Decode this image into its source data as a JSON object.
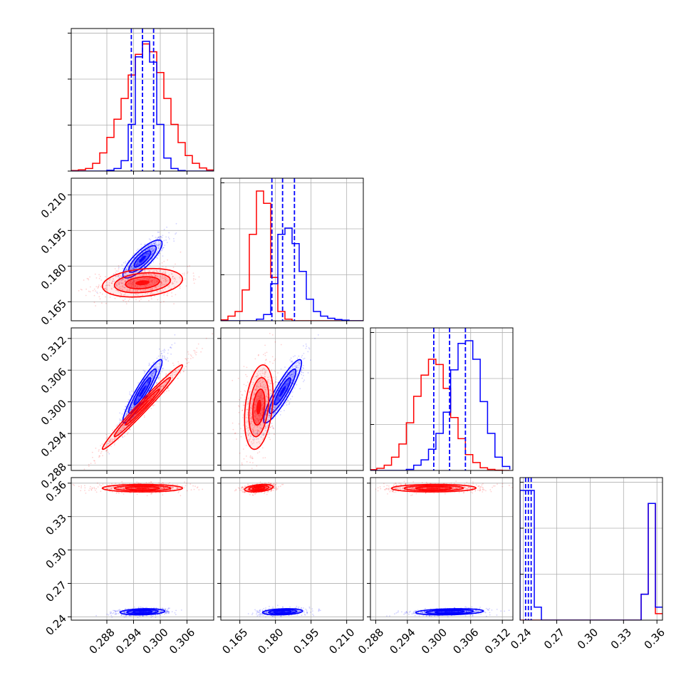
{
  "chart_data": {
    "type": "corner",
    "colors": {
      "series_a": "#0000ff",
      "series_b": "#ff0000",
      "grid": "#b0b0b0"
    },
    "grid": true,
    "series": [
      {
        "color": "#0000ff"
      },
      {
        "color": "#ff0000"
      }
    ],
    "parameters": [
      {
        "index": 0,
        "range": [
          0.28,
          0.312
        ],
        "ticks": [
          "0.288",
          "0.294",
          "0.300",
          "0.306"
        ]
      },
      {
        "index": 1,
        "range": [
          0.157,
          0.217
        ],
        "ticks": [
          "0.165",
          "0.180",
          "0.195",
          "0.210"
        ]
      },
      {
        "index": 2,
        "range": [
          0.287,
          0.314
        ],
        "ticks": [
          "0.288",
          "0.294",
          "0.300",
          "0.306",
          "0.312"
        ]
      },
      {
        "index": 3,
        "range": [
          0.237,
          0.365
        ],
        "ticks": [
          "0.24",
          "0.27",
          "0.30",
          "0.33",
          "0.36"
        ]
      }
    ],
    "quantiles": [
      {
        "param": 0,
        "values": [
          0.2935,
          0.296,
          0.2985
        ]
      },
      {
        "param": 1,
        "values": [
          0.1785,
          0.183,
          0.188
        ]
      },
      {
        "param": 2,
        "values": [
          0.299,
          0.302,
          0.305
        ]
      },
      {
        "param": 3,
        "values": [
          0.242,
          0.2445,
          0.247
        ]
      }
    ],
    "histograms": [
      {
        "param": 0,
        "edges": [
          0.28,
          0.2816,
          0.2832,
          0.2848,
          0.2864,
          0.288,
          0.2896,
          0.2912,
          0.2928,
          0.2944,
          0.296,
          0.2976,
          0.2992,
          0.3008,
          0.3024,
          0.304,
          0.3056,
          0.3072,
          0.3088,
          0.3104,
          0.312
        ],
        "blue": [
          0,
          0,
          0,
          0,
          0,
          0.3,
          1,
          4,
          18,
          44,
          50,
          42,
          18,
          5,
          1,
          0.2,
          0,
          0,
          0,
          0
        ],
        "red": [
          0.2,
          0.5,
          1,
          3,
          7,
          13,
          20,
          28,
          37,
          45,
          49,
          46,
          38,
          28,
          18,
          11,
          6,
          3,
          1.2,
          0.4
        ]
      },
      {
        "param": 1,
        "edges": [
          0.157,
          0.16,
          0.163,
          0.166,
          0.169,
          0.172,
          0.175,
          0.178,
          0.181,
          0.184,
          0.187,
          0.19,
          0.193,
          0.196,
          0.199,
          0.202,
          0.205,
          0.208,
          0.211,
          0.214,
          0.217
        ],
        "blue": [
          0,
          0,
          0,
          0,
          0,
          0.5,
          2,
          12,
          28,
          30,
          25,
          16,
          7,
          3,
          1.5,
          0.8,
          0.4,
          0.2,
          0,
          0
        ],
        "red": [
          0.3,
          1.5,
          3,
          10,
          28,
          42,
          38,
          14,
          3,
          0.5,
          0,
          0,
          0,
          0,
          0,
          0,
          0,
          0,
          0,
          0
        ]
      },
      {
        "param": 2,
        "edges": [
          0.2868,
          0.2882,
          0.2896,
          0.291,
          0.2924,
          0.2938,
          0.2952,
          0.2966,
          0.298,
          0.2994,
          0.3008,
          0.3022,
          0.3036,
          0.305,
          0.3064,
          0.3078,
          0.3092,
          0.3106,
          0.312,
          0.3134
        ],
        "blue": [
          0,
          0,
          0,
          0,
          0,
          0.4,
          2,
          4,
          8,
          14,
          22,
          38,
          48,
          49,
          42,
          26,
          14,
          5,
          1.5,
          0.4
        ],
        "red": [
          0.3,
          0.8,
          2,
          5,
          10,
          18,
          28,
          36,
          42,
          40,
          31,
          20,
          12,
          6,
          3,
          1,
          0.4,
          0.1,
          0,
          0
        ]
      },
      {
        "param": 3,
        "edges": [
          0.237,
          0.2434,
          0.2498,
          0.2562,
          0.2626,
          0.269,
          0.2754,
          0.2818,
          0.2882,
          0.2946,
          0.301,
          0.3074,
          0.3138,
          0.3202,
          0.3266,
          0.333,
          0.3394,
          0.3458,
          0.3522,
          0.3586,
          0.365
        ],
        "blue": [
          1,
          1,
          0.1,
          0,
          0,
          0,
          0,
          0,
          0,
          0,
          0,
          0,
          0,
          0,
          0,
          0,
          0,
          0.2,
          0.9,
          0.1
        ],
        "red": [
          0,
          0,
          0,
          0,
          0,
          0,
          0,
          0,
          0,
          0,
          0,
          0,
          0,
          0,
          0,
          0,
          0,
          0.2,
          0.9,
          0.05
        ]
      }
    ],
    "blobs": [
      {
        "x": 0,
        "y": 1,
        "series": "blue",
        "mean": [
          0.296,
          0.183
        ],
        "sd": [
          0.0022,
          0.004
        ],
        "rho": 0.82
      },
      {
        "x": 0,
        "y": 1,
        "series": "red",
        "mean": [
          0.296,
          0.173
        ],
        "sd": [
          0.0045,
          0.003
        ],
        "rho": 0.25
      },
      {
        "x": 0,
        "y": 2,
        "series": "blue",
        "mean": [
          0.296,
          0.302
        ],
        "sd": [
          0.0022,
          0.003
        ],
        "rho": 0.93
      },
      {
        "x": 0,
        "y": 2,
        "series": "red",
        "mean": [
          0.296,
          0.299
        ],
        "sd": [
          0.0045,
          0.004
        ],
        "rho": 0.985
      },
      {
        "x": 0,
        "y": 3,
        "series": "red",
        "mean": [
          0.296,
          0.3555
        ],
        "sd": [
          0.0045,
          0.0017
        ],
        "rho": 0.0
      },
      {
        "x": 0,
        "y": 3,
        "series": "blue",
        "mean": [
          0.296,
          0.2445
        ],
        "sd": [
          0.0025,
          0.0014
        ],
        "rho": 0.2
      },
      {
        "x": 1,
        "y": 2,
        "series": "blue",
        "mean": [
          0.183,
          0.302
        ],
        "sd": [
          0.004,
          0.003
        ],
        "rho": 0.9
      },
      {
        "x": 1,
        "y": 2,
        "series": "red",
        "mean": [
          0.173,
          0.299
        ],
        "sd": [
          0.003,
          0.004
        ],
        "rho": 0.3
      },
      {
        "x": 1,
        "y": 3,
        "series": "red",
        "mean": [
          0.173,
          0.3555
        ],
        "sd": [
          0.003,
          0.0017
        ],
        "rho": 0.35
      },
      {
        "x": 1,
        "y": 3,
        "series": "blue",
        "mean": [
          0.183,
          0.2445
        ],
        "sd": [
          0.0042,
          0.0014
        ],
        "rho": 0.25
      },
      {
        "x": 2,
        "y": 3,
        "series": "red",
        "mean": [
          0.299,
          0.3555
        ],
        "sd": [
          0.004,
          0.0017
        ],
        "rho": 0.05
      },
      {
        "x": 2,
        "y": 3,
        "series": "blue",
        "mean": [
          0.302,
          0.2445
        ],
        "sd": [
          0.0032,
          0.0014
        ],
        "rho": 0.25
      }
    ]
  }
}
